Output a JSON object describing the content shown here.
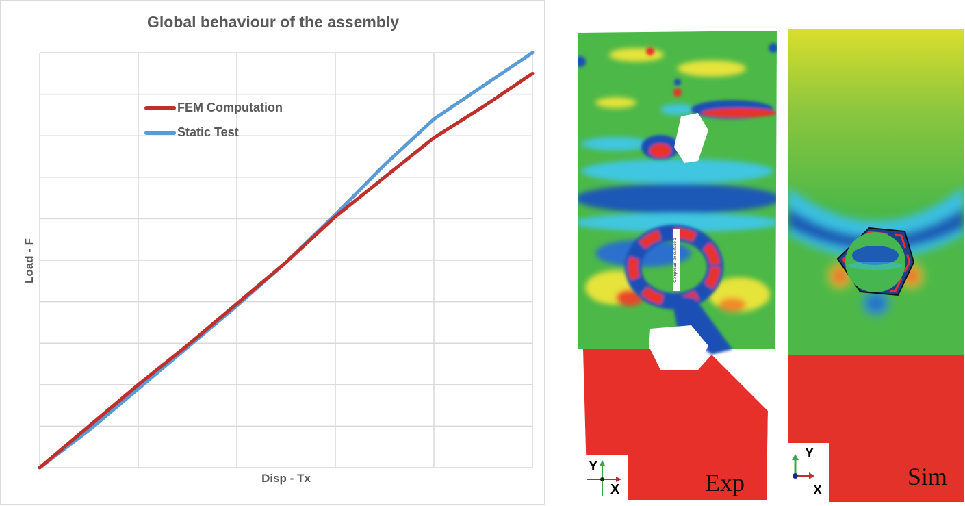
{
  "chart_data": {
    "type": "line",
    "title": "Global behaviour of the assembly",
    "xlabel": "Disp - Tx",
    "ylabel": "Load - F",
    "xlim": [
      0,
      5
    ],
    "ylim": [
      0,
      10
    ],
    "grid": true,
    "tick_labels_shown": false,
    "legend_position": "upper-left inside plot",
    "series": [
      {
        "name": "FEM Computation",
        "color": "#C0302B",
        "x": [
          0.0,
          0.5,
          1.0,
          1.5,
          2.0,
          2.5,
          3.0,
          3.5,
          4.0,
          4.5,
          5.0
        ],
        "y": [
          0.0,
          1.0,
          2.0,
          2.95,
          3.95,
          4.95,
          6.05,
          7.0,
          7.95,
          8.7,
          9.5
        ]
      },
      {
        "name": "Static Test",
        "color": "#5B9BD5",
        "x": [
          0.0,
          0.5,
          1.0,
          1.5,
          2.0,
          2.5,
          3.0,
          3.5,
          4.0,
          4.5,
          5.0
        ],
        "y": [
          0.0,
          0.9,
          1.9,
          2.9,
          3.9,
          4.95,
          6.1,
          7.3,
          8.4,
          9.2,
          10.0
        ]
      }
    ]
  },
  "chart": {
    "title": "Global behaviour of the assembly",
    "xlabel": "Disp - Tx",
    "ylabel": "Load - F",
    "legend": [
      {
        "label": "FEM Computation",
        "color": "#C0302B"
      },
      {
        "label": "Static Test",
        "color": "#5B9BD5"
      }
    ]
  },
  "panels": {
    "exp": {
      "label": "Exp",
      "axis_y": "Y",
      "axis_x": "X",
      "overlay_text": "Cemposant de surface 1"
    },
    "sim": {
      "label": "Sim",
      "axis_y": "Y",
      "axis_x": "X"
    }
  }
}
